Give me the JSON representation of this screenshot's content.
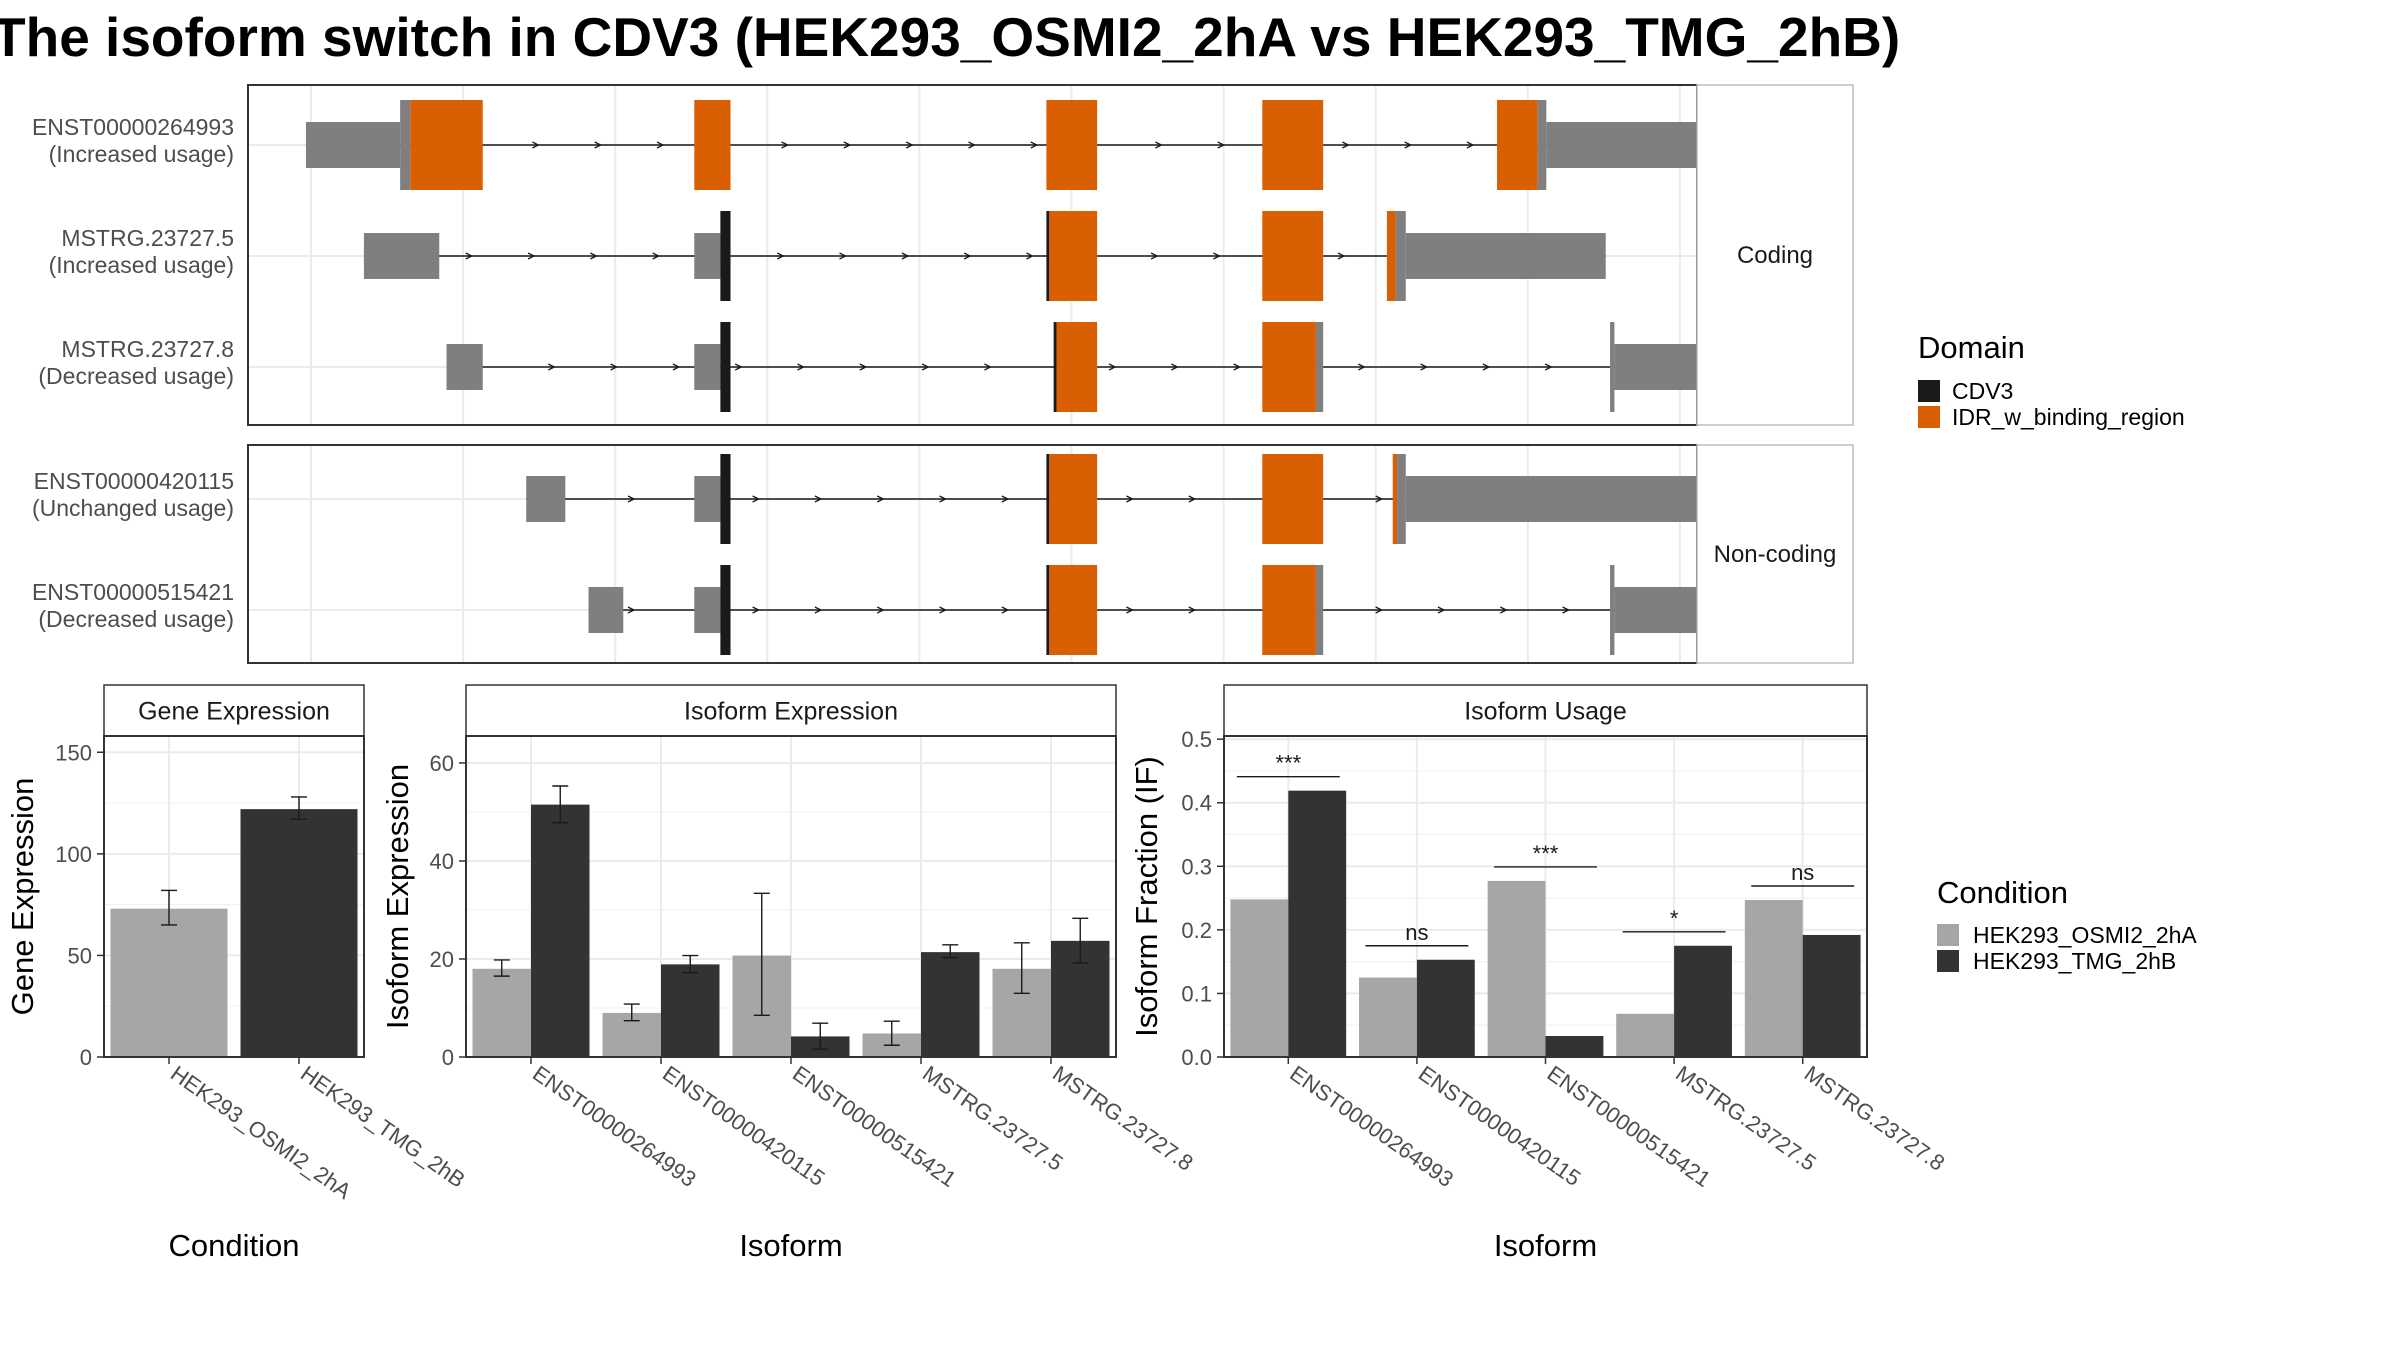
{
  "title": "The isoform switch in CDV3 (HEK293_OSMI2_2hA vs HEK293_TMG_2hB)",
  "colors": {
    "cdv3": "#1a1a1a",
    "idr": "#d95f02",
    "utr": "#7f7f7f",
    "cond_a": "#a6a6a6",
    "cond_b": "#333333",
    "strip_bg": "#ffffff",
    "grid": "#ebebeb",
    "panel_border": "#333333"
  },
  "chart_data": [
    {
      "type": "gene-structure",
      "legend_title": "Domain",
      "legend": [
        {
          "label": "CDV3",
          "color_key": "cdv3"
        },
        {
          "label": "IDR_w_binding_region",
          "color_key": "idr"
        }
      ],
      "xlim": [
        0,
        1000
      ],
      "groups": [
        {
          "strip": "Coding",
          "transcripts": [
            {
              "name": "ENST00000264993",
              "usage": "(Increased usage)",
              "exons": [
                {
                  "s": 40,
                  "e": 105,
                  "h": "utr"
                },
                {
                  "s": 105,
                  "e": 112,
                  "h": "utr"
                },
                {
                  "s": 112,
                  "e": 162,
                  "h": "idr"
                },
                {
                  "s": 308,
                  "e": 333,
                  "h": "idr"
                },
                {
                  "s": 551,
                  "e": 586,
                  "h": "idr"
                },
                {
                  "s": 700,
                  "e": 742,
                  "h": "idr"
                },
                {
                  "s": 862,
                  "e": 890,
                  "h": "idr"
                },
                {
                  "s": 890,
                  "e": 896,
                  "h": "utr"
                },
                {
                  "s": 896,
                  "e": 1045,
                  "h": "utr"
                }
              ],
              "tall": [
                [
                  105,
                  162
                ],
                [
                  308,
                  333
                ],
                [
                  551,
                  586
                ],
                [
                  700,
                  742
                ],
                [
                  862,
                  896
                ]
              ]
            },
            {
              "name": "MSTRG.23727.5",
              "usage": "(Increased usage)",
              "exons": [
                {
                  "s": 80,
                  "e": 132,
                  "h": "utr"
                },
                {
                  "s": 308,
                  "e": 326,
                  "h": "utr"
                },
                {
                  "s": 326,
                  "e": 333,
                  "h": "cdv3"
                },
                {
                  "s": 551,
                  "e": 553,
                  "h": "cdv3"
                },
                {
                  "s": 553,
                  "e": 586,
                  "h": "idr"
                },
                {
                  "s": 700,
                  "e": 742,
                  "h": "idr"
                },
                {
                  "s": 786,
                  "e": 792,
                  "h": "idr"
                },
                {
                  "s": 792,
                  "e": 799,
                  "h": "utr"
                },
                {
                  "s": 799,
                  "e": 937,
                  "h": "utr"
                }
              ],
              "tall": [
                [
                  326,
                  333
                ],
                [
                  551,
                  586
                ],
                [
                  700,
                  742
                ],
                [
                  786,
                  799
                ]
              ]
            },
            {
              "name": "MSTRG.23727.8",
              "usage": "(Decreased usage)",
              "exons": [
                {
                  "s": 137,
                  "e": 162,
                  "h": "utr"
                },
                {
                  "s": 308,
                  "e": 326,
                  "h": "utr"
                },
                {
                  "s": 326,
                  "e": 333,
                  "h": "cdv3"
                },
                {
                  "s": 556,
                  "e": 558,
                  "h": "cdv3"
                },
                {
                  "s": 558,
                  "e": 586,
                  "h": "idr"
                },
                {
                  "s": 700,
                  "e": 737,
                  "h": "idr"
                },
                {
                  "s": 737,
                  "e": 742,
                  "h": "utr"
                },
                {
                  "s": 940,
                  "e": 943,
                  "h": "utr"
                },
                {
                  "s": 943,
                  "e": 1045,
                  "h": "utr"
                }
              ],
              "tall": [
                [
                  326,
                  333
                ],
                [
                  556,
                  586
                ],
                [
                  700,
                  742
                ],
                [
                  940,
                  943
                ]
              ]
            }
          ]
        },
        {
          "strip": "Non-coding",
          "transcripts": [
            {
              "name": "ENST00000420115",
              "usage": "(Unchanged usage)",
              "exons": [
                {
                  "s": 192,
                  "e": 219,
                  "h": "utr"
                },
                {
                  "s": 308,
                  "e": 326,
                  "h": "utr"
                },
                {
                  "s": 326,
                  "e": 333,
                  "h": "cdv3"
                },
                {
                  "s": 551,
                  "e": 553,
                  "h": "cdv3"
                },
                {
                  "s": 553,
                  "e": 586,
                  "h": "idr"
                },
                {
                  "s": 700,
                  "e": 742,
                  "h": "idr"
                },
                {
                  "s": 790,
                  "e": 793,
                  "h": "idr"
                },
                {
                  "s": 793,
                  "e": 799,
                  "h": "utr"
                },
                {
                  "s": 799,
                  "e": 1045,
                  "h": "utr"
                }
              ],
              "tall": [
                [
                  326,
                  333
                ],
                [
                  551,
                  586
                ],
                [
                  700,
                  742
                ],
                [
                  790,
                  799
                ]
              ]
            },
            {
              "name": "ENST00000515421",
              "usage": "(Decreased usage)",
              "exons": [
                {
                  "s": 235,
                  "e": 259,
                  "h": "utr"
                },
                {
                  "s": 308,
                  "e": 326,
                  "h": "utr"
                },
                {
                  "s": 326,
                  "e": 333,
                  "h": "cdv3"
                },
                {
                  "s": 551,
                  "e": 553,
                  "h": "cdv3"
                },
                {
                  "s": 553,
                  "e": 586,
                  "h": "idr"
                },
                {
                  "s": 700,
                  "e": 737,
                  "h": "idr"
                },
                {
                  "s": 737,
                  "e": 742,
                  "h": "utr"
                },
                {
                  "s": 940,
                  "e": 943,
                  "h": "utr"
                },
                {
                  "s": 943,
                  "e": 1045,
                  "h": "utr"
                }
              ],
              "tall": [
                [
                  326,
                  333
                ],
                [
                  551,
                  586
                ],
                [
                  700,
                  742
                ],
                [
                  940,
                  943
                ]
              ]
            }
          ]
        }
      ]
    },
    {
      "type": "bar",
      "strip": "Gene Expression",
      "ylabel": "Gene Expression",
      "xlabel": "Condition",
      "ylim": [
        0,
        158
      ],
      "yticks": [
        0,
        50,
        100,
        150
      ],
      "categories": [
        "HEK293_OSMI2_2hA",
        "HEK293_TMG_2hB"
      ],
      "bars": [
        {
          "value": 73,
          "err": [
            65,
            82
          ],
          "color_key": "cond_a"
        },
        {
          "value": 122,
          "err": [
            117,
            128
          ],
          "color_key": "cond_b"
        }
      ]
    },
    {
      "type": "bar",
      "strip": "Isoform Expression",
      "ylabel": "Isoform Expression",
      "xlabel": "Isoform",
      "ylim": [
        0,
        65.5
      ],
      "yticks": [
        0,
        20,
        40,
        60
      ],
      "categories": [
        "ENST00000264993",
        "ENST00000420115",
        "ENST00000515421",
        "MSTRG.23727.5",
        "MSTRG.23727.8"
      ],
      "series": [
        {
          "name": "HEK293_OSMI2_2hA",
          "color_key": "cond_a",
          "values": [
            18,
            9,
            20.7,
            4.8,
            18
          ],
          "err": [
            [
              16.5,
              19.8
            ],
            [
              7.4,
              10.8
            ],
            [
              8.5,
              33.4
            ],
            [
              2.4,
              7.3
            ],
            [
              13,
              23.3
            ]
          ]
        },
        {
          "name": "HEK293_TMG_2hB",
          "color_key": "cond_b",
          "values": [
            51.5,
            18.9,
            4.2,
            21.4,
            23.7
          ],
          "err": [
            [
              47.8,
              55.3
            ],
            [
              17.2,
              20.7
            ],
            [
              1.6,
              6.9
            ],
            [
              20.3,
              22.9
            ],
            [
              19.2,
              28.3
            ]
          ]
        }
      ]
    },
    {
      "type": "bar",
      "strip": "Isoform Usage",
      "ylabel": "Isoform Fraction (IF)",
      "xlabel": "Isoform",
      "ylim": [
        0,
        0.505
      ],
      "yticks": [
        0.0,
        0.1,
        0.2,
        0.3,
        0.4,
        0.5
      ],
      "ytick_labels": [
        "0.0",
        "0.1",
        "0.2",
        "0.3",
        "0.4",
        "0.5"
      ],
      "categories": [
        "ENST00000264993",
        "ENST00000420115",
        "ENST00000515421",
        "MSTRG.23727.5",
        "MSTRG.23727.8"
      ],
      "series": [
        {
          "name": "HEK293_OSMI2_2hA",
          "color_key": "cond_a",
          "values": [
            0.248,
            0.125,
            0.277,
            0.068,
            0.247
          ]
        },
        {
          "name": "HEK293_TMG_2hB",
          "color_key": "cond_b",
          "values": [
            0.419,
            0.153,
            0.033,
            0.175,
            0.192
          ]
        }
      ],
      "significance": [
        "***",
        "ns",
        "***",
        "*",
        "ns"
      ]
    },
    {
      "type": "legend",
      "title": "Condition",
      "entries": [
        {
          "label": "HEK293_OSMI2_2hA",
          "color_key": "cond_a"
        },
        {
          "label": "HEK293_TMG_2hB",
          "color_key": "cond_b"
        }
      ]
    }
  ]
}
